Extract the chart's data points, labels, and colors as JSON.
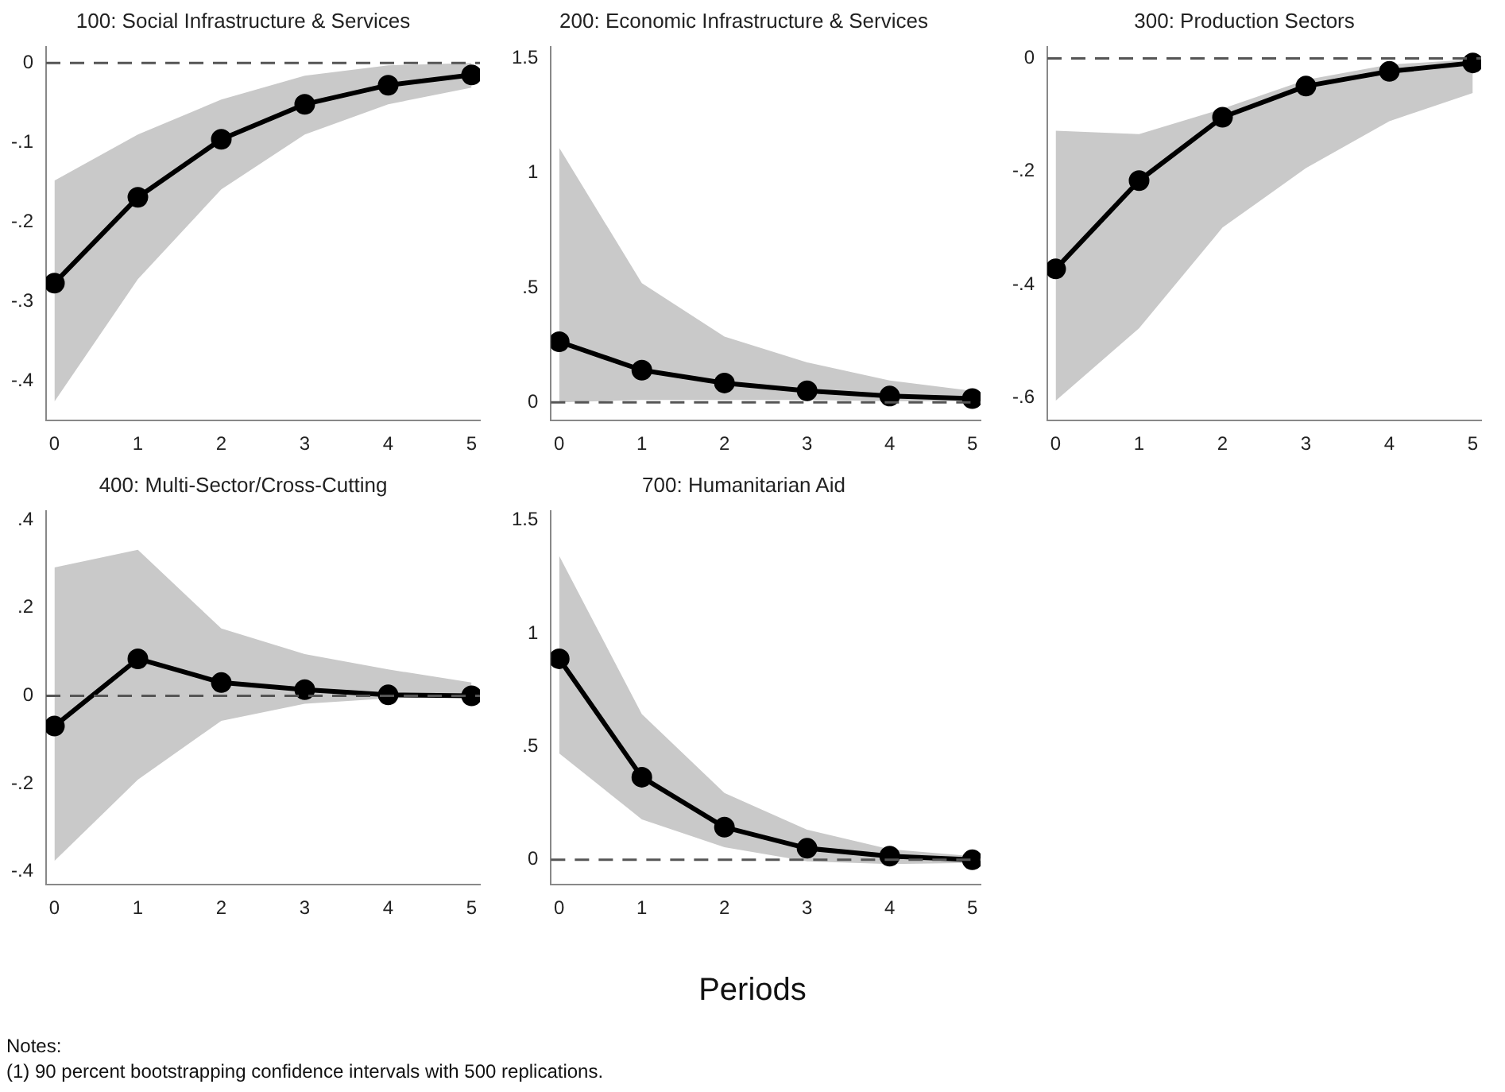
{
  "chart_data": [
    {
      "type": "line",
      "title": "100: Social Infrastructure & Services",
      "x": [
        0,
        1,
        2,
        3,
        4,
        5
      ],
      "xlim": [
        -0.1,
        5.1
      ],
      "xticks": [
        0,
        1,
        2,
        3,
        4,
        5
      ],
      "ylim": [
        -0.45,
        0.02
      ],
      "yticks": [
        {
          "value": -0.4,
          "label": "-.4"
        },
        {
          "value": -0.3,
          "label": "-.3"
        },
        {
          "value": -0.2,
          "label": "-.2"
        },
        {
          "value": -0.1,
          "label": "-.1"
        },
        0
      ],
      "grid": false,
      "legend": false,
      "marker": "circle",
      "line_style": "solid",
      "series": [
        {
          "color": "#000000",
          "values": [
            -0.277,
            -0.169,
            -0.096,
            -0.052,
            -0.028,
            -0.015
          ],
          "lower": [
            -0.426,
            -0.272,
            -0.159,
            -0.09,
            -0.052,
            -0.031
          ],
          "upper": [
            -0.148,
            -0.09,
            -0.046,
            -0.016,
            -0.003,
            0
          ]
        }
      ],
      "ref_lines": [
        {
          "axis": "y",
          "value": 0,
          "color": "#555555",
          "line_style": "dashed"
        }
      ]
    },
    {
      "type": "line",
      "title": "200: Economic Infrastructure & Services",
      "x": [
        0,
        1,
        2,
        3,
        4,
        5
      ],
      "xlim": [
        -0.1,
        5.1
      ],
      "xticks": [
        0,
        1,
        2,
        3,
        4,
        5
      ],
      "ylim": [
        -0.08,
        1.55
      ],
      "yticks": [
        0,
        {
          "value": 0.5,
          "label": ".5"
        },
        1,
        1.5
      ],
      "grid": false,
      "legend": false,
      "marker": "circle",
      "line_style": "solid",
      "series": [
        {
          "color": "#000000",
          "values": [
            0.264,
            0.14,
            0.084,
            0.05,
            0.027,
            0.016
          ],
          "lower": [
            0,
            0.01,
            0.01,
            0.01,
            0.005,
            0.005
          ],
          "upper": [
            1.11,
            0.52,
            0.287,
            0.174,
            0.095,
            0.05
          ]
        }
      ],
      "ref_lines": [
        {
          "axis": "y",
          "value": 0,
          "color": "#555555",
          "line_style": "dashed"
        }
      ]
    },
    {
      "type": "line",
      "title": "300: Production Sectors",
      "x": [
        0,
        1,
        2,
        3,
        4,
        5
      ],
      "xlim": [
        -0.1,
        5.1
      ],
      "xticks": [
        0,
        1,
        2,
        3,
        4,
        5
      ],
      "ylim": [
        -0.64,
        0.02
      ],
      "yticks": [
        {
          "value": -0.6,
          "label": "-.6"
        },
        {
          "value": -0.4,
          "label": "-.4"
        },
        {
          "value": -0.2,
          "label": "-.2"
        },
        0
      ],
      "grid": false,
      "legend": false,
      "marker": "circle",
      "line_style": "solid",
      "series": [
        {
          "color": "#000000",
          "values": [
            -0.372,
            -0.216,
            -0.104,
            -0.049,
            -0.023,
            -0.008
          ],
          "lower": [
            -0.605,
            -0.477,
            -0.299,
            -0.194,
            -0.111,
            -0.061
          ],
          "upper": [
            -0.128,
            -0.134,
            -0.089,
            -0.038,
            -0.011,
            -0.002
          ]
        }
      ],
      "ref_lines": [
        {
          "axis": "y",
          "value": 0,
          "color": "#555555",
          "line_style": "dashed"
        }
      ]
    },
    {
      "type": "line",
      "title": "400: Multi-Sector/Cross-Cutting",
      "x": [
        0,
        1,
        2,
        3,
        4,
        5
      ],
      "xlim": [
        -0.1,
        5.1
      ],
      "xticks": [
        0,
        1,
        2,
        3,
        4,
        5
      ],
      "ylim": [
        -0.43,
        0.42
      ],
      "yticks": [
        {
          "value": -0.4,
          "label": "-.4"
        },
        {
          "value": -0.2,
          "label": "-.2"
        },
        0,
        {
          "value": 0.2,
          "label": ".2"
        },
        {
          "value": 0.4,
          "label": ".4"
        }
      ],
      "grid": false,
      "legend": false,
      "marker": "circle",
      "line_style": "solid",
      "series": [
        {
          "color": "#000000",
          "values": [
            -0.069,
            0.084,
            0.03,
            0.014,
            0.002,
            0
          ],
          "lower": [
            -0.376,
            -0.191,
            -0.057,
            -0.018,
            -0.006,
            -0.002
          ],
          "upper": [
            0.292,
            0.332,
            0.153,
            0.095,
            0.06,
            0.03
          ]
        }
      ],
      "ref_lines": [
        {
          "axis": "y",
          "value": 0,
          "color": "#555555",
          "line_style": "dashed"
        }
      ]
    },
    {
      "type": "line",
      "title": "700: Humanitarian Aid",
      "xlabel": "Periods",
      "x": [
        0,
        1,
        2,
        3,
        4,
        5
      ],
      "xlim": [
        -0.1,
        5.1
      ],
      "xticks": [
        0,
        1,
        2,
        3,
        4,
        5
      ],
      "ylim": [
        -0.11,
        1.54
      ],
      "yticks": [
        0,
        {
          "value": 0.5,
          "label": ".5"
        },
        1,
        1.5
      ],
      "grid": false,
      "legend": false,
      "marker": "circle",
      "line_style": "solid",
      "series": [
        {
          "color": "#000000",
          "values": [
            0.888,
            0.365,
            0.144,
            0.051,
            0.016,
            0
          ],
          "lower": [
            0.47,
            0.179,
            0.056,
            -0.007,
            -0.019,
            -0.014
          ],
          "upper": [
            1.342,
            0.644,
            0.295,
            0.133,
            0.047,
            0.016
          ]
        }
      ],
      "ref_lines": [
        {
          "axis": "y",
          "value": 0,
          "color": "#555555",
          "line_style": "dashed"
        }
      ],
      "annotations": [
        "Notes:",
        "(1) 90 percent bootstrapping confidence intervals with 500 replications."
      ]
    }
  ]
}
